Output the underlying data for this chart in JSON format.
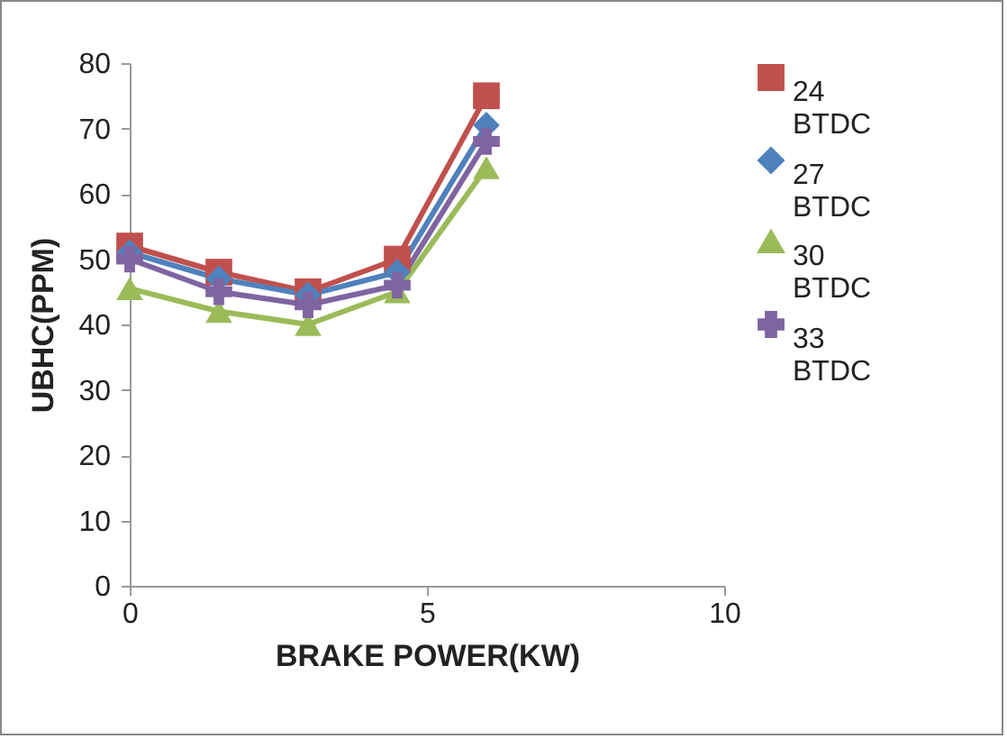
{
  "chart_data": {
    "type": "line",
    "xlabel": "BRAKE POWER(KW)",
    "ylabel": "UBHC(PPM)",
    "x": [
      0,
      1.5,
      3,
      4.5,
      6
    ],
    "series": [
      {
        "name": "24 BTDC",
        "color": "#c0504d",
        "marker": "square",
        "values": [
          52,
          48,
          45,
          50,
          75
        ]
      },
      {
        "name": "27 BTDC",
        "color": "#4f81bd",
        "marker": "diamond",
        "values": [
          51,
          47,
          44.5,
          48,
          70.5
        ]
      },
      {
        "name": "30 BTDC",
        "color": "#9bbb59",
        "marker": "triangle",
        "values": [
          45.5,
          42,
          40,
          45,
          64
        ]
      },
      {
        "name": "33 BTDC",
        "color": "#8064a2",
        "marker": "cross",
        "values": [
          50,
          45,
          43,
          46,
          68
        ]
      }
    ],
    "xlim": [
      0,
      10
    ],
    "xticks": [
      0,
      5,
      10
    ],
    "ylim": [
      0,
      80
    ],
    "yticks": [
      0,
      10,
      20,
      30,
      40,
      50,
      60,
      70,
      80
    ],
    "grid": false,
    "legend": "right",
    "line_style": "solid"
  }
}
